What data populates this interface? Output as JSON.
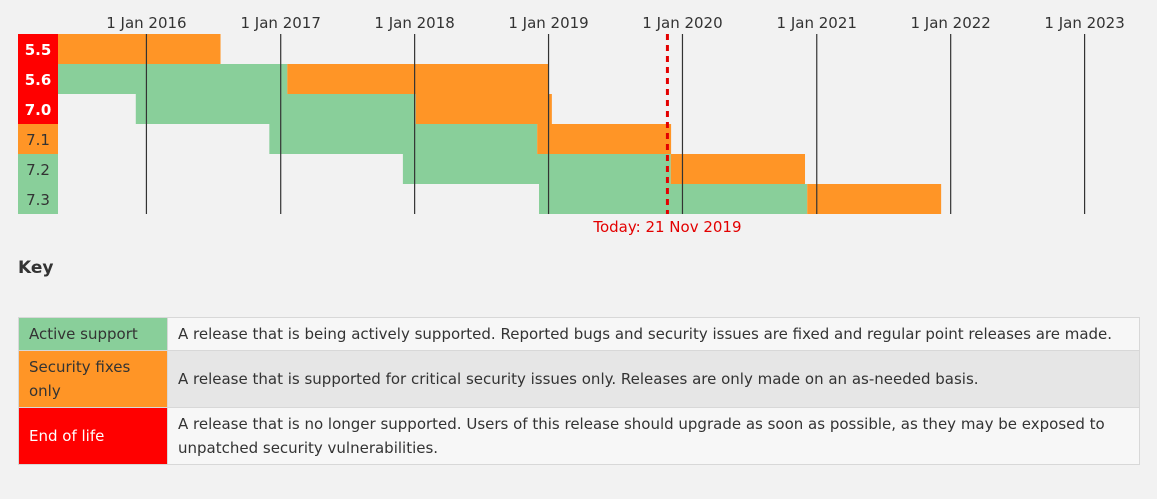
{
  "chart_data": {
    "type": "timeline",
    "axis_labels": [
      "1 Jan 2016",
      "1 Jan 2017",
      "1 Jan 2018",
      "1 Jan 2019",
      "1 Jan 2020",
      "1 Jan 2021",
      "1 Jan 2022",
      "1 Jan 2023"
    ],
    "x_range": [
      "2015-05-05",
      "2023-06-01"
    ],
    "today": {
      "date": "2019-11-21",
      "label": "Today: 21 Nov 2019"
    },
    "colors": {
      "active": "#89cf9a",
      "security": "#ff9526",
      "eol": "#ff0000",
      "eol_text": "#ffffff",
      "today": "#e30000"
    },
    "releases": [
      {
        "version": "5.5",
        "status": "eol",
        "start": "2012-03-01",
        "active_end": "2014-07-31",
        "security_end": "2016-07-21"
      },
      {
        "version": "5.6",
        "status": "eol",
        "start": "2014-08-28",
        "active_end": "2017-01-19",
        "security_end": "2018-12-31"
      },
      {
        "version": "7.0",
        "status": "eol",
        "start": "2015-12-03",
        "active_end": "2018-01-04",
        "security_end": "2019-01-10"
      },
      {
        "version": "7.1",
        "status": "security",
        "start": "2016-12-01",
        "active_end": "2018-12-01",
        "security_end": "2019-12-01"
      },
      {
        "version": "7.2",
        "status": "active",
        "start": "2017-11-30",
        "active_end": "2019-11-30",
        "security_end": "2020-11-30"
      },
      {
        "version": "7.3",
        "status": "active",
        "start": "2018-12-06",
        "active_end": "2020-12-06",
        "security_end": "2021-12-06"
      }
    ]
  },
  "key": {
    "title": "Key",
    "rows": [
      {
        "label": "Active support",
        "status": "active",
        "description": "A release that is being actively supported. Reported bugs and security issues are fixed and regular point releases are made."
      },
      {
        "label": "Security fixes only",
        "status": "security",
        "description": "A release that is supported for critical security issues only. Releases are only made on an as-needed basis."
      },
      {
        "label": "End of life",
        "status": "eol",
        "description": "A release that is no longer supported. Users of this release should upgrade as soon as possible, as they may be exposed to unpatched security vulnerabilities."
      }
    ]
  }
}
